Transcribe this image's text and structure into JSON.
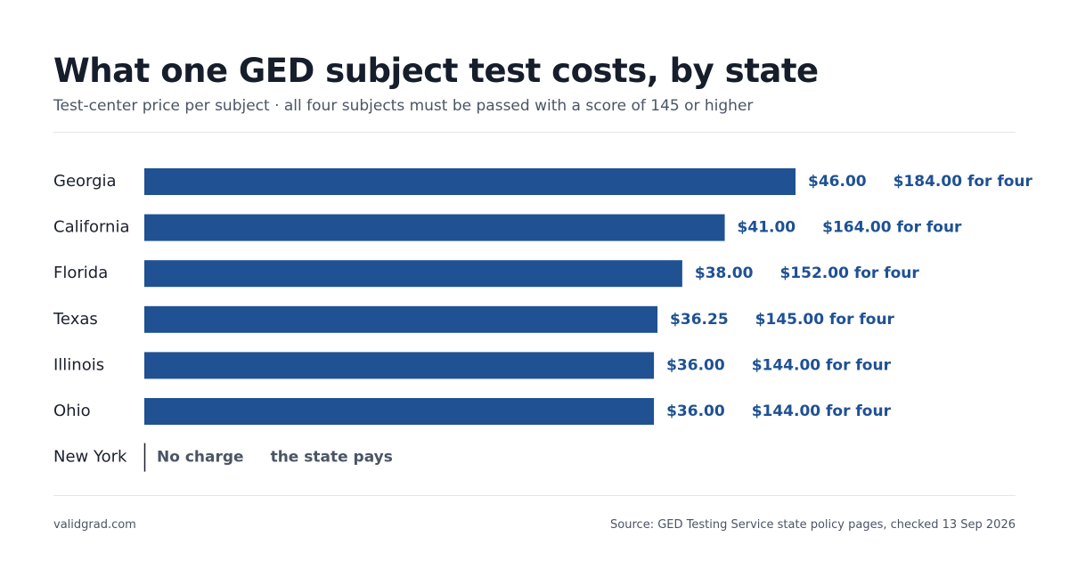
{
  "title": "What one GED subject test costs, by state",
  "subtitle": "Test-center price per subject · all four subjects must be passed with a score of 145 or higher",
  "footer": {
    "site": "validgrad.com",
    "source": "Source: GED Testing Service state policy pages, checked 13 Sep 2026"
  },
  "colors": {
    "bar": "#1f5193",
    "value_text": "#1f5193",
    "no_charge_text": "#4a5565",
    "category_text": "#1a202c"
  },
  "chart_data": {
    "type": "bar",
    "orientation": "horizontal",
    "categories": [
      "Georgia",
      "California",
      "Florida",
      "Texas",
      "Illinois",
      "Ohio",
      "New York"
    ],
    "values": [
      46.0,
      41.0,
      38.0,
      36.25,
      36.0,
      36.0,
      0
    ],
    "value_labels": [
      "$46.00",
      "$41.00",
      "$38.00",
      "$36.25",
      "$36.00",
      "$36.00",
      "No charge"
    ],
    "total_labels": [
      "$184.00 for four",
      "$164.00 for four",
      "$152.00 for four",
      "$145.00 for four",
      "$144.00 for four",
      "$144.00 for four",
      "the state pays"
    ],
    "xlim": [
      0,
      46
    ],
    "grid": false,
    "legend": false
  }
}
